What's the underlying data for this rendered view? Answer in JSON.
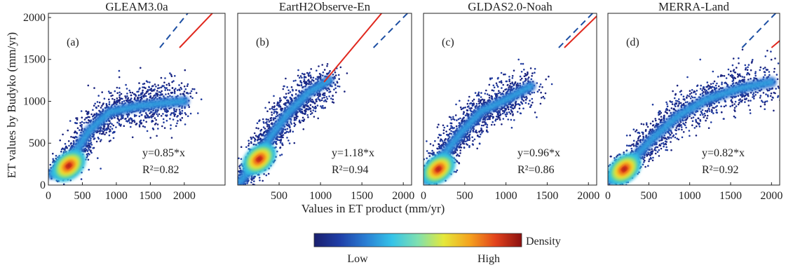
{
  "figure": {
    "ylabel": "ET values  by Budyko (mm/yr)",
    "xlabel": "Values in ET product (mm/yr)"
  },
  "colorbar": {
    "title": "Density",
    "low_label": "Low",
    "high_label": "High",
    "colors": [
      "#1a1f6e",
      "#1f3fa8",
      "#2a7fd4",
      "#35c3e8",
      "#7fe0b0",
      "#e5e83a",
      "#f5a21e",
      "#e2421c",
      "#8b1010"
    ]
  },
  "colors": {
    "fit_line": "#e0281e",
    "one_to_one_line": "#1d4fa3"
  },
  "chart_data": [
    {
      "type": "scatter",
      "panel": "(a)",
      "title": "GLEAM3.0a",
      "xlim": [
        0,
        2600
      ],
      "ylim": [
        0,
        2050
      ],
      "xticks": [
        0,
        500,
        1000,
        1500,
        2000
      ],
      "yticks": [
        0,
        500,
        1000,
        1500,
        2000
      ],
      "xtick_labels": [
        "0",
        "500",
        "1000",
        "1500",
        "2000"
      ],
      "ytick_labels": [
        "0",
        "500",
        "1000",
        "1500",
        "2000"
      ],
      "fit_slope": 0.85,
      "equation": "y=0.85*x",
      "r2_label": "R²=0.82",
      "density_ridge": [
        [
          50,
          130
        ],
        [
          300,
          270
        ],
        [
          600,
          650
        ],
        [
          900,
          870
        ],
        [
          1300,
          940
        ],
        [
          1700,
          980
        ],
        [
          2000,
          1000
        ]
      ],
      "density_center": [
        300,
        230
      ]
    },
    {
      "type": "scatter",
      "panel": "(b)",
      "title": "EartH2Observe-En",
      "xlim": [
        0,
        2100
      ],
      "ylim": [
        0,
        2050
      ],
      "xticks": [
        500,
        1000,
        1500,
        2000
      ],
      "yticks": [],
      "xtick_labels": [
        "500",
        "1000",
        "1500",
        "2000"
      ],
      "ytick_labels": [],
      "fit_slope": 1.18,
      "equation": "y=1.18*x",
      "r2_label": "R²=0.94",
      "density_ridge": [
        [
          30,
          40
        ],
        [
          200,
          250
        ],
        [
          400,
          580
        ],
        [
          600,
          850
        ],
        [
          850,
          1100
        ],
        [
          1100,
          1250
        ]
      ],
      "density_center": [
        260,
        310
      ]
    },
    {
      "type": "scatter",
      "panel": "(c)",
      "title": "GLDAS2.0-Noah",
      "xlim": [
        0,
        2100
      ],
      "ylim": [
        0,
        2050
      ],
      "xticks": [
        0,
        500,
        1000,
        1500,
        2000
      ],
      "yticks": [],
      "xtick_labels": [
        "0",
        "500",
        "1000",
        "1500",
        "2000"
      ],
      "ytick_labels": [],
      "fit_slope": 0.96,
      "equation": "y=0.96*x",
      "r2_label": "R²=0.86",
      "density_ridge": [
        [
          40,
          60
        ],
        [
          200,
          300
        ],
        [
          450,
          620
        ],
        [
          700,
          880
        ],
        [
          1000,
          1020
        ],
        [
          1300,
          1180
        ]
      ],
      "density_center": [
        180,
        190
      ]
    },
    {
      "type": "scatter",
      "panel": "(d)",
      "title": "MERRA-Land",
      "xlim": [
        0,
        2100
      ],
      "ylim": [
        0,
        2050
      ],
      "xticks": [
        0,
        500,
        1000,
        1500,
        2000
      ],
      "yticks": [],
      "xtick_labels": [
        "0",
        "500",
        "1000",
        "1500",
        "2000"
      ],
      "ytick_labels": [],
      "fit_slope": 0.82,
      "equation": "y=0.82*x",
      "r2_label": "R²=0.92",
      "density_ridge": [
        [
          40,
          60
        ],
        [
          250,
          250
        ],
        [
          550,
          560
        ],
        [
          850,
          820
        ],
        [
          1200,
          1020
        ],
        [
          1600,
          1150
        ],
        [
          2000,
          1230
        ]
      ],
      "density_center": [
        200,
        190
      ]
    }
  ]
}
